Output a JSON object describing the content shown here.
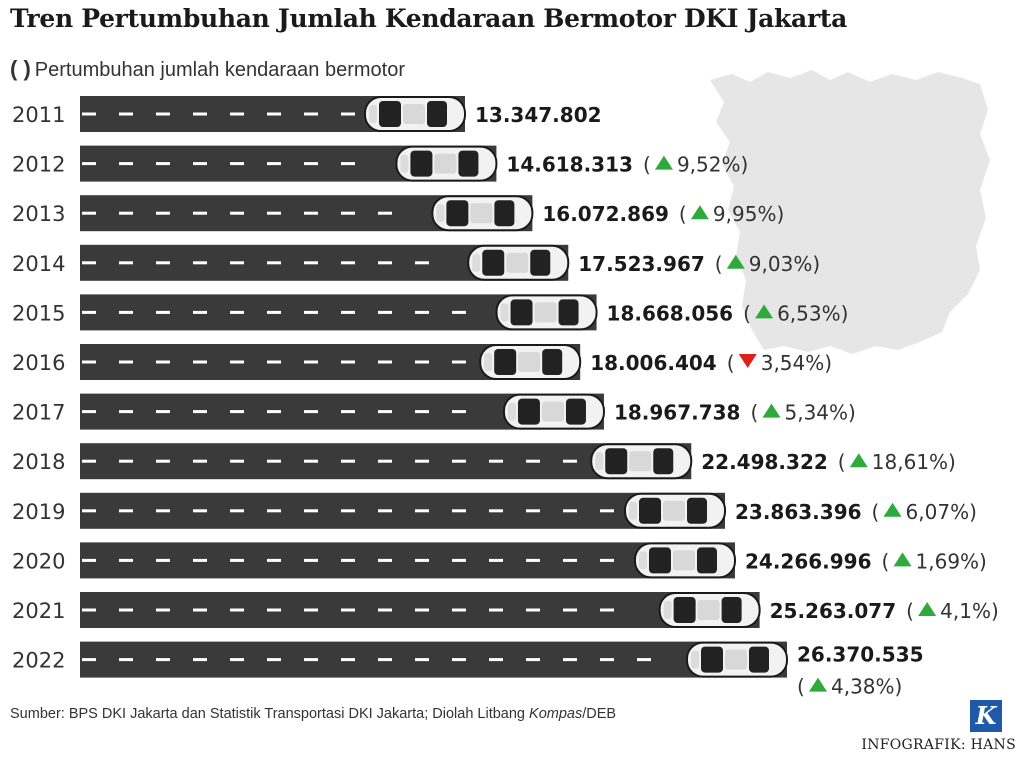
{
  "title": "Tren Pertumbuhan Jumlah Kendaraan Bermotor DKI Jakarta",
  "legend": {
    "symbol": "( )",
    "text": "Pertumbuhan jumlah kendaraan bermotor"
  },
  "source": {
    "prefix": "Sumber: BPS DKI Jakarta dan Statistik Transportasi DKI Jakarta; Diolah Litbang ",
    "italic": "Kompas",
    "suffix": "/DEB"
  },
  "logo_letter": "K",
  "credit": "INFOGRAFIK: HANS",
  "colors": {
    "road": "#3a3a3a",
    "lane": "#ffffff",
    "up": "#2eaa3c",
    "down": "#e0201b",
    "map": "#e6e6e6"
  },
  "chart_data": {
    "type": "bar",
    "orientation": "horizontal",
    "categories": [
      "2011",
      "2012",
      "2013",
      "2014",
      "2015",
      "2016",
      "2017",
      "2018",
      "2019",
      "2020",
      "2021",
      "2022"
    ],
    "values": [
      13347802,
      14618313,
      16072869,
      17523967,
      18668056,
      18006404,
      18967738,
      22498322,
      23863396,
      24266996,
      25263077,
      26370535
    ],
    "value_labels": [
      "13.347.802",
      "14.618.313",
      "16.072.869",
      "17.523.967",
      "18.668.056",
      "18.006.404",
      "18.967.738",
      "22.498.322",
      "23.863.396",
      "24.266.996",
      "25.263.077",
      "26.370.535"
    ],
    "growth": [
      "",
      "9,52%",
      "9,95%",
      "9,03%",
      "6,53%",
      "3,54%",
      "5,34%",
      "18,61%",
      "6,07%",
      "1,69%",
      "4,1%",
      "4,38%"
    ],
    "growth_direction": [
      "",
      "up",
      "up",
      "up",
      "up",
      "down",
      "up",
      "up",
      "up",
      "up",
      "up",
      "up"
    ],
    "xlim": [
      0,
      26370535
    ],
    "grid": false
  }
}
